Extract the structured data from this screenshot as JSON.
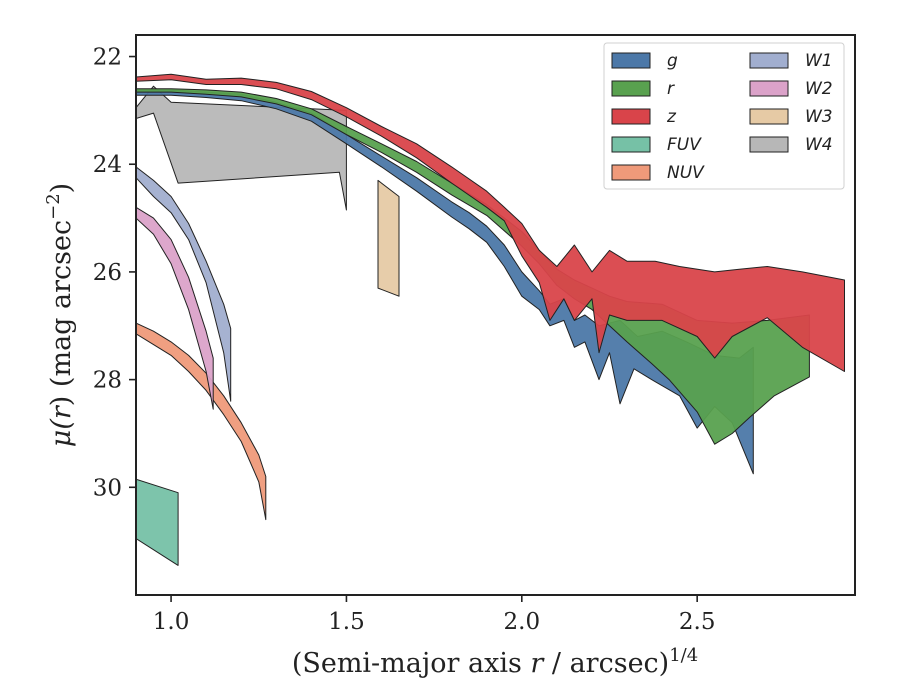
{
  "chart_data": {
    "type": "area",
    "xlabel": "(Semi-major axis r / arcsec)^1/4",
    "xlabel_parts": {
      "open": "(Semi-major axis ",
      "var": "r",
      "mid": " / arcsec)",
      "sup": "1/4"
    },
    "ylabel": "μ(r) (mag arcsec^−2)",
    "ylabel_parts": {
      "mu": "μ(",
      "var": "r",
      "mid": ") (mag arcsec",
      "sup": "−2",
      "close": ")"
    },
    "xlim": [
      0.9,
      2.95
    ],
    "ylim": [
      32.0,
      21.6
    ],
    "y_inverted": true,
    "x_ticks": [
      1.0,
      1.5,
      2.0,
      2.5
    ],
    "x_tick_labels": [
      "1.0",
      "1.5",
      "2.0",
      "2.5"
    ],
    "y_ticks": [
      22,
      24,
      26,
      28,
      30
    ],
    "y_tick_labels": [
      "22",
      "24",
      "26",
      "28",
      "30"
    ],
    "grid": false,
    "legend": {
      "position": "top-right",
      "columns": 2
    },
    "series": [
      {
        "name": "g",
        "color": "#4c78a8",
        "upper": [
          [
            0.9,
            22.62
          ],
          [
            1.0,
            22.62
          ],
          [
            1.1,
            22.66
          ],
          [
            1.2,
            22.7
          ],
          [
            1.3,
            22.85
          ],
          [
            1.4,
            23.05
          ],
          [
            1.5,
            23.45
          ],
          [
            1.6,
            23.85
          ],
          [
            1.7,
            24.25
          ],
          [
            1.8,
            24.7
          ],
          [
            1.85,
            24.9
          ],
          [
            1.9,
            25.15
          ],
          [
            1.95,
            25.5
          ],
          [
            2.0,
            26.0
          ],
          [
            2.05,
            26.35
          ],
          [
            2.08,
            26.6
          ],
          [
            2.12,
            26.5
          ],
          [
            2.15,
            26.9
          ],
          [
            2.18,
            26.8
          ],
          [
            2.22,
            27.0
          ],
          [
            2.28,
            26.9
          ],
          [
            2.33,
            27.2
          ],
          [
            2.4,
            27.1
          ],
          [
            2.47,
            27.3
          ],
          [
            2.55,
            27.55
          ],
          [
            2.62,
            27.6
          ],
          [
            2.66,
            27.4
          ]
        ],
        "lower": [
          [
            0.9,
            22.72
          ],
          [
            1.0,
            22.72
          ],
          [
            1.1,
            22.76
          ],
          [
            1.2,
            22.82
          ],
          [
            1.3,
            22.97
          ],
          [
            1.4,
            23.2
          ],
          [
            1.5,
            23.62
          ],
          [
            1.6,
            24.05
          ],
          [
            1.7,
            24.5
          ],
          [
            1.8,
            24.98
          ],
          [
            1.85,
            25.2
          ],
          [
            1.9,
            25.45
          ],
          [
            1.95,
            25.9
          ],
          [
            2.0,
            26.45
          ],
          [
            2.05,
            26.7
          ],
          [
            2.08,
            27.0
          ],
          [
            2.12,
            26.9
          ],
          [
            2.15,
            27.4
          ],
          [
            2.18,
            27.3
          ],
          [
            2.22,
            28.0
          ],
          [
            2.25,
            27.5
          ],
          [
            2.28,
            28.45
          ],
          [
            2.32,
            27.8
          ],
          [
            2.37,
            28.0
          ],
          [
            2.41,
            28.15
          ],
          [
            2.45,
            28.3
          ],
          [
            2.5,
            28.9
          ],
          [
            2.55,
            28.5
          ],
          [
            2.6,
            28.8
          ],
          [
            2.66,
            29.75
          ]
        ]
      },
      {
        "name": "r",
        "color": "#59a14f",
        "upper": [
          [
            0.9,
            22.6
          ],
          [
            1.0,
            22.6
          ],
          [
            1.1,
            22.62
          ],
          [
            1.2,
            22.66
          ],
          [
            1.3,
            22.78
          ],
          [
            1.4,
            22.97
          ],
          [
            1.5,
            23.3
          ],
          [
            1.6,
            23.62
          ],
          [
            1.7,
            23.95
          ],
          [
            1.8,
            24.35
          ],
          [
            1.9,
            24.75
          ],
          [
            2.0,
            25.25
          ],
          [
            2.05,
            25.6
          ],
          [
            2.1,
            25.95
          ],
          [
            2.15,
            26.15
          ],
          [
            2.2,
            26.3
          ],
          [
            2.25,
            26.45
          ],
          [
            2.3,
            26.55
          ],
          [
            2.4,
            26.6
          ],
          [
            2.5,
            26.9
          ],
          [
            2.6,
            26.95
          ],
          [
            2.7,
            26.9
          ],
          [
            2.82,
            26.8
          ]
        ],
        "lower": [
          [
            0.9,
            22.66
          ],
          [
            1.0,
            22.66
          ],
          [
            1.1,
            22.7
          ],
          [
            1.2,
            22.75
          ],
          [
            1.3,
            22.88
          ],
          [
            1.4,
            23.08
          ],
          [
            1.5,
            23.45
          ],
          [
            1.6,
            23.78
          ],
          [
            1.7,
            24.15
          ],
          [
            1.8,
            24.57
          ],
          [
            1.9,
            24.95
          ],
          [
            2.0,
            25.52
          ],
          [
            2.05,
            25.85
          ],
          [
            2.1,
            26.25
          ],
          [
            2.15,
            26.5
          ],
          [
            2.2,
            26.7
          ],
          [
            2.25,
            27.0
          ],
          [
            2.3,
            27.3
          ],
          [
            2.37,
            27.7
          ],
          [
            2.42,
            28.0
          ],
          [
            2.5,
            28.6
          ],
          [
            2.55,
            29.2
          ],
          [
            2.6,
            29.0
          ],
          [
            2.65,
            28.7
          ],
          [
            2.72,
            28.3
          ],
          [
            2.82,
            27.95
          ]
        ]
      },
      {
        "name": "z",
        "color": "#d9444a",
        "upper": [
          [
            0.9,
            22.38
          ],
          [
            1.0,
            22.33
          ],
          [
            1.1,
            22.42
          ],
          [
            1.2,
            22.4
          ],
          [
            1.3,
            22.48
          ],
          [
            1.4,
            22.65
          ],
          [
            1.5,
            22.95
          ],
          [
            1.6,
            23.3
          ],
          [
            1.7,
            23.62
          ],
          [
            1.8,
            24.05
          ],
          [
            1.9,
            24.5
          ],
          [
            1.95,
            24.8
          ],
          [
            2.0,
            25.1
          ],
          [
            2.05,
            25.6
          ],
          [
            2.1,
            25.9
          ],
          [
            2.15,
            25.5
          ],
          [
            2.2,
            26.0
          ],
          [
            2.25,
            25.6
          ],
          [
            2.3,
            25.8
          ],
          [
            2.38,
            25.8
          ],
          [
            2.45,
            25.9
          ],
          [
            2.55,
            26.0
          ],
          [
            2.62,
            25.95
          ],
          [
            2.7,
            25.9
          ],
          [
            2.8,
            26.0
          ],
          [
            2.92,
            26.15
          ]
        ],
        "lower": [
          [
            0.9,
            22.46
          ],
          [
            1.0,
            22.43
          ],
          [
            1.1,
            22.52
          ],
          [
            1.2,
            22.52
          ],
          [
            1.3,
            22.6
          ],
          [
            1.4,
            22.8
          ],
          [
            1.5,
            23.12
          ],
          [
            1.6,
            23.48
          ],
          [
            1.7,
            23.88
          ],
          [
            1.8,
            24.35
          ],
          [
            1.9,
            24.8
          ],
          [
            1.95,
            25.05
          ],
          [
            2.0,
            25.7
          ],
          [
            2.05,
            26.2
          ],
          [
            2.08,
            26.9
          ],
          [
            2.12,
            26.5
          ],
          [
            2.15,
            26.9
          ],
          [
            2.2,
            26.5
          ],
          [
            2.22,
            27.5
          ],
          [
            2.25,
            26.8
          ],
          [
            2.3,
            26.9
          ],
          [
            2.4,
            26.9
          ],
          [
            2.5,
            27.2
          ],
          [
            2.55,
            27.6
          ],
          [
            2.6,
            27.2
          ],
          [
            2.7,
            26.85
          ],
          [
            2.8,
            27.4
          ],
          [
            2.92,
            27.85
          ]
        ]
      },
      {
        "name": "FUV",
        "color": "#76c1a6",
        "upper": [
          [
            0.9,
            29.85
          ],
          [
            1.02,
            30.1
          ]
        ],
        "lower": [
          [
            0.9,
            30.95
          ],
          [
            1.02,
            31.45
          ]
        ]
      },
      {
        "name": "NUV",
        "color": "#ef9a7a",
        "upper": [
          [
            0.9,
            26.95
          ],
          [
            0.95,
            27.1
          ],
          [
            1.0,
            27.3
          ],
          [
            1.05,
            27.55
          ],
          [
            1.1,
            27.88
          ],
          [
            1.15,
            28.3
          ],
          [
            1.2,
            28.8
          ],
          [
            1.25,
            29.4
          ],
          [
            1.27,
            29.8
          ]
        ],
        "lower": [
          [
            0.9,
            27.15
          ],
          [
            0.95,
            27.35
          ],
          [
            1.0,
            27.55
          ],
          [
            1.05,
            27.85
          ],
          [
            1.1,
            28.2
          ],
          [
            1.15,
            28.65
          ],
          [
            1.2,
            29.15
          ],
          [
            1.25,
            29.9
          ],
          [
            1.27,
            30.6
          ]
        ]
      },
      {
        "name": "W1",
        "color": "#a1aecf",
        "upper": [
          [
            0.9,
            24.05
          ],
          [
            0.95,
            24.3
          ],
          [
            1.0,
            24.6
          ],
          [
            1.05,
            25.1
          ],
          [
            1.1,
            25.8
          ],
          [
            1.15,
            26.6
          ],
          [
            1.17,
            27.05
          ]
        ],
        "lower": [
          [
            0.9,
            24.25
          ],
          [
            0.95,
            24.6
          ],
          [
            1.0,
            24.9
          ],
          [
            1.05,
            25.4
          ],
          [
            1.1,
            26.2
          ],
          [
            1.15,
            27.5
          ],
          [
            1.17,
            28.4
          ]
        ]
      },
      {
        "name": "W2",
        "color": "#dba2c9",
        "upper": [
          [
            0.9,
            24.8
          ],
          [
            0.95,
            25.0
          ],
          [
            1.0,
            25.4
          ],
          [
            1.05,
            26.1
          ],
          [
            1.1,
            27.1
          ],
          [
            1.12,
            27.6
          ]
        ],
        "lower": [
          [
            0.9,
            25.0
          ],
          [
            0.95,
            25.3
          ],
          [
            1.0,
            25.85
          ],
          [
            1.05,
            26.7
          ],
          [
            1.1,
            27.85
          ],
          [
            1.12,
            28.55
          ]
        ]
      },
      {
        "name": "W3",
        "color": "#e6caa5",
        "upper": [
          [
            1.59,
            24.3
          ],
          [
            1.65,
            24.6
          ]
        ],
        "lower": [
          [
            1.59,
            26.3
          ],
          [
            1.65,
            26.45
          ]
        ]
      },
      {
        "name": "W4",
        "color": "#b7b7b7",
        "upper": [
          [
            0.9,
            22.95
          ],
          [
            0.95,
            22.55
          ],
          [
            1.0,
            22.85
          ],
          [
            1.5,
            23.0
          ]
        ],
        "lower": [
          [
            0.9,
            23.15
          ],
          [
            0.95,
            23.05
          ],
          [
            1.02,
            24.35
          ],
          [
            1.48,
            24.15
          ],
          [
            1.5,
            24.85
          ]
        ]
      }
    ]
  }
}
